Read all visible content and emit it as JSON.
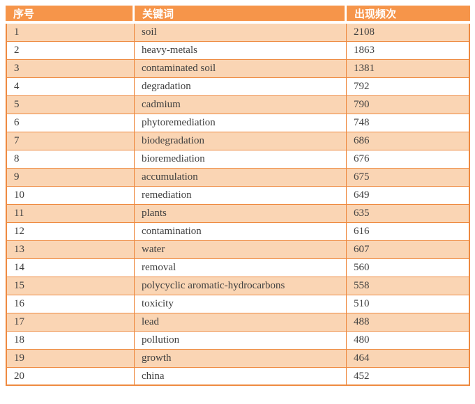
{
  "colors": {
    "header_bg": "#F6954A",
    "band_bg": "#FAD5B4",
    "border": "#EE8A40",
    "header_text": "#FFFFFF",
    "body_text": "#3F3F3F",
    "page_bg": "#FFFFFF"
  },
  "table": {
    "columns": [
      {
        "label": "序号"
      },
      {
        "label": "关键词"
      },
      {
        "label": "出现频次"
      }
    ],
    "rows": [
      {
        "index": "1",
        "keyword": "soil",
        "frequency": "2108"
      },
      {
        "index": "2",
        "keyword": "heavy-metals",
        "frequency": "1863"
      },
      {
        "index": "3",
        "keyword": "contaminated soil",
        "frequency": "1381"
      },
      {
        "index": "4",
        "keyword": "degradation",
        "frequency": "792"
      },
      {
        "index": "5",
        "keyword": "cadmium",
        "frequency": "790"
      },
      {
        "index": "6",
        "keyword": "phytoremediation",
        "frequency": "748"
      },
      {
        "index": "7",
        "keyword": "biodegradation",
        "frequency": "686"
      },
      {
        "index": "8",
        "keyword": "bioremediation",
        "frequency": "676"
      },
      {
        "index": "9",
        "keyword": "accumulation",
        "frequency": "675"
      },
      {
        "index": "10",
        "keyword": "remediation",
        "frequency": "649"
      },
      {
        "index": "11",
        "keyword": "plants",
        "frequency": "635"
      },
      {
        "index": "12",
        "keyword": "contamination",
        "frequency": "616"
      },
      {
        "index": "13",
        "keyword": "water",
        "frequency": "607"
      },
      {
        "index": "14",
        "keyword": "removal",
        "frequency": "560"
      },
      {
        "index": "15",
        "keyword": "polycyclic aromatic-hydrocarbons",
        "frequency": "558"
      },
      {
        "index": "16",
        "keyword": "toxicity",
        "frequency": "510"
      },
      {
        "index": "17",
        "keyword": "lead",
        "frequency": "488"
      },
      {
        "index": "18",
        "keyword": "pollution",
        "frequency": "480"
      },
      {
        "index": "19",
        "keyword": "growth",
        "frequency": "464"
      },
      {
        "index": "20",
        "keyword": "china",
        "frequency": "452"
      }
    ]
  },
  "chart_data": {
    "type": "table",
    "title": "",
    "columns": [
      "序号",
      "关键词",
      "出现频次"
    ],
    "rows": [
      [
        1,
        "soil",
        2108
      ],
      [
        2,
        "heavy-metals",
        1863
      ],
      [
        3,
        "contaminated soil",
        1381
      ],
      [
        4,
        "degradation",
        792
      ],
      [
        5,
        "cadmium",
        790
      ],
      [
        6,
        "phytoremediation",
        748
      ],
      [
        7,
        "biodegradation",
        686
      ],
      [
        8,
        "bioremediation",
        676
      ],
      [
        9,
        "accumulation",
        675
      ],
      [
        10,
        "remediation",
        649
      ],
      [
        11,
        "plants",
        635
      ],
      [
        12,
        "contamination",
        616
      ],
      [
        13,
        "water",
        607
      ],
      [
        14,
        "removal",
        560
      ],
      [
        15,
        "polycyclic aromatic-hydrocarbons",
        558
      ],
      [
        16,
        "toxicity",
        510
      ],
      [
        17,
        "lead",
        488
      ],
      [
        18,
        "pollution",
        480
      ],
      [
        19,
        "growth",
        464
      ],
      [
        20,
        "china",
        452
      ]
    ]
  }
}
